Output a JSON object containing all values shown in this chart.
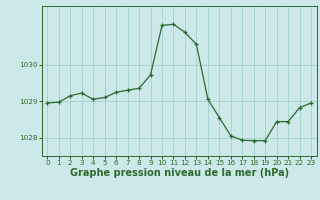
{
  "x": [
    0,
    1,
    2,
    3,
    4,
    5,
    6,
    7,
    8,
    9,
    10,
    11,
    12,
    13,
    14,
    15,
    16,
    17,
    18,
    19,
    20,
    21,
    22,
    23
  ],
  "y": [
    1028.95,
    1028.97,
    1029.15,
    1029.22,
    1029.05,
    1029.1,
    1029.24,
    1029.3,
    1029.35,
    1029.72,
    1031.07,
    1031.1,
    1030.88,
    1030.55,
    1029.05,
    1028.55,
    1028.05,
    1027.93,
    1027.92,
    1027.92,
    1028.44,
    1028.44,
    1028.82,
    1028.95
  ],
  "line_color": "#2d6a2d",
  "marker_color": "#2d6a2d",
  "bg_color": "#cce8e8",
  "grid_color": "#99cccc",
  "axis_color": "#2d6a2d",
  "xlabel": "Graphe pression niveau de la mer (hPa)",
  "ylim_min": 1027.5,
  "ylim_max": 1031.6,
  "yticks": [
    1028,
    1029,
    1030
  ],
  "xticks": [
    0,
    1,
    2,
    3,
    4,
    5,
    6,
    7,
    8,
    9,
    10,
    11,
    12,
    13,
    14,
    15,
    16,
    17,
    18,
    19,
    20,
    21,
    22,
    23
  ],
  "tick_fontsize": 5.2,
  "xlabel_fontsize": 7.0
}
